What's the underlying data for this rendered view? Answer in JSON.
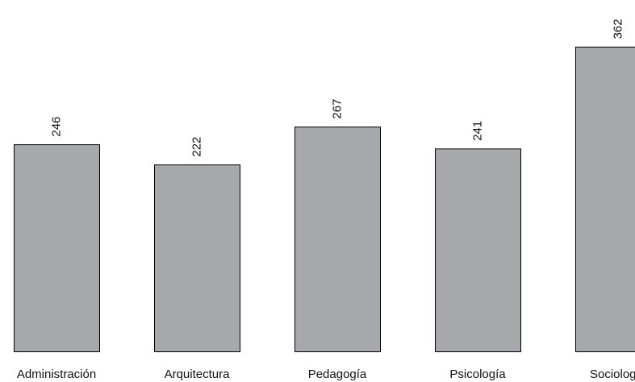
{
  "chart_data": {
    "type": "bar",
    "orientation": "vertical",
    "categories": [
      "Administración",
      "Arquitectura",
      "Pedagogía",
      "Psicología",
      "Sociología"
    ],
    "values": [
      246,
      222,
      267,
      241,
      362
    ],
    "value_labels": [
      "246",
      "222",
      "267",
      "241",
      "362"
    ],
    "value_label_orientation": "rotated-vertical",
    "bar_color": "#a7a8ab",
    "bar_edge_color": "#000000",
    "ylim": [
      0,
      400
    ],
    "grid": false,
    "axes_visible": false,
    "legend": "none"
  }
}
